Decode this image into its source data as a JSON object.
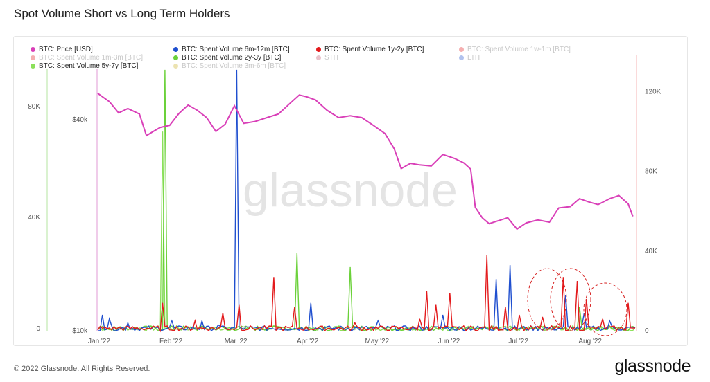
{
  "page": {
    "title": "Spot Volume Short vs Long Term Holders",
    "footer": "© 2022 Glassnode. All Rights Reserved.",
    "brand": "glassnode",
    "watermark": "glassnode"
  },
  "colors": {
    "price": "#d93fb8",
    "v6m12m": "#1f4fcf",
    "v1y2y": "#e31a1c",
    "v2y3y": "#6bd13a",
    "v5y7y": "#8be05a",
    "faded_red": "#f0a0a0",
    "faded_green": "#b5e6a0",
    "faded_gold": "#d6cc7a",
    "faded_rose": "#e8a0b8",
    "faded_blue": "#9ab0e0",
    "annotation": "#d62222"
  },
  "legend": [
    {
      "label": "BTC: Price [USD]",
      "color": "#d93fb8",
      "faded": false
    },
    {
      "label": "BTC: Spent Volume 6m-12m [BTC]",
      "color": "#1f4fcf",
      "faded": false
    },
    {
      "label": "BTC: Spent Volume 1y-2y [BTC]",
      "color": "#e31a1c",
      "faded": false
    },
    {
      "label": "BTC: Spent Volume 1w-1m [BTC]",
      "color": "#e31a1c",
      "faded": true
    },
    {
      "label": "BTC: Spent Volume 1m-3m [BTC]",
      "color": "#e31a1c",
      "faded": true
    },
    {
      "label": "BTC: Spent Volume 2y-3y [BTC]",
      "color": "#6bd13a",
      "faded": false
    },
    {
      "label": "STH",
      "color": "#c0506a",
      "faded": true
    },
    {
      "label": "LTH",
      "color": "#1f4fcf",
      "faded": true
    },
    {
      "label": "BTC: Spent Volume 5y-7y [BTC]",
      "color": "#8be05a",
      "faded": false
    },
    {
      "label": "BTC: Spent Volume 3m-6m [BTC]",
      "color": "#c9b020",
      "faded": true
    }
  ],
  "chart_data": {
    "type": "line",
    "x_labels": [
      "Jan '22",
      "Feb '22",
      "Mar '22",
      "Apr '22",
      "May '22",
      "Jun '22",
      "Jul '22",
      "Aug '22"
    ],
    "axes": {
      "left_outer_ticks": [
        "0",
        "40K",
        "80K"
      ],
      "left_price_ticks": [
        "$10k",
        "$40k"
      ],
      "right_ticks": [
        "0",
        "40K",
        "80K",
        "120K"
      ],
      "price_scale": "log",
      "price_range": [
        10000,
        52000
      ],
      "volume_range": [
        0,
        140000
      ]
    },
    "price": {
      "name": "BTC: Price [USD]",
      "x": [
        "2022-01-01",
        "2022-01-06",
        "2022-01-10",
        "2022-01-14",
        "2022-01-19",
        "2022-01-22",
        "2022-01-25",
        "2022-01-28",
        "2022-02-01",
        "2022-02-05",
        "2022-02-09",
        "2022-02-13",
        "2022-02-17",
        "2022-02-21",
        "2022-02-25",
        "2022-03-01",
        "2022-03-05",
        "2022-03-10",
        "2022-03-15",
        "2022-03-20",
        "2022-03-25",
        "2022-03-29",
        "2022-04-01",
        "2022-04-05",
        "2022-04-10",
        "2022-04-15",
        "2022-04-20",
        "2022-04-25",
        "2022-04-30",
        "2022-05-05",
        "2022-05-09",
        "2022-05-12",
        "2022-05-16",
        "2022-05-20",
        "2022-05-25",
        "2022-05-30",
        "2022-06-04",
        "2022-06-08",
        "2022-06-11",
        "2022-06-13",
        "2022-06-16",
        "2022-06-19",
        "2022-06-22",
        "2022-06-27",
        "2022-07-01",
        "2022-07-05",
        "2022-07-10",
        "2022-07-15",
        "2022-07-19",
        "2022-07-24",
        "2022-07-28",
        "2022-08-01",
        "2022-08-05",
        "2022-08-10",
        "2022-08-14",
        "2022-08-18",
        "2022-08-20"
      ],
      "y": [
        47500,
        45000,
        41800,
        43000,
        41500,
        36000,
        37000,
        38000,
        38500,
        41600,
        44000,
        42500,
        40500,
        37000,
        38800,
        43800,
        39000,
        39500,
        40500,
        41500,
        44500,
        47000,
        46500,
        45500,
        42500,
        40500,
        41000,
        40500,
        38500,
        36500,
        33000,
        29000,
        30000,
        29700,
        29500,
        31800,
        31000,
        30100,
        28900,
        22500,
        21000,
        20200,
        20500,
        21000,
        19500,
        20300,
        20700,
        20400,
        22400,
        22600,
        23800,
        23300,
        22900,
        23800,
        24300,
        23000,
        21200
      ]
    },
    "volume_series": [
      {
        "name": "BTC: Spent Volume 1y-2y [BTC]",
        "color": "#e31a1c",
        "spikes": [
          [
            "2022-01-29",
            14000
          ],
          [
            "2022-02-12",
            5000
          ],
          [
            "2022-02-24",
            9000
          ],
          [
            "2022-03-03",
            13000
          ],
          [
            "2022-03-18",
            27000
          ],
          [
            "2022-03-27",
            12000
          ],
          [
            "2022-04-22",
            4000
          ],
          [
            "2022-05-20",
            6000
          ],
          [
            "2022-05-23",
            20000
          ],
          [
            "2022-05-27",
            13000
          ],
          [
            "2022-06-02",
            19000
          ],
          [
            "2022-06-18",
            38000
          ],
          [
            "2022-06-26",
            12000
          ],
          [
            "2022-07-02",
            8000
          ],
          [
            "2022-07-12",
            7000
          ],
          [
            "2022-07-21",
            27000
          ],
          [
            "2022-07-27",
            25000
          ],
          [
            "2022-07-31",
            16000
          ],
          [
            "2022-08-07",
            6000
          ],
          [
            "2022-08-18",
            14000
          ],
          [
            "2022-08-22",
            4000
          ]
        ]
      },
      {
        "name": "BTC: Spent Volume 6m-12m [BTC]",
        "color": "#1f4fcf",
        "spikes": [
          [
            "2022-01-03",
            8000
          ],
          [
            "2022-01-06",
            6000
          ],
          [
            "2022-01-14",
            4000
          ],
          [
            "2022-02-02",
            5000
          ],
          [
            "2022-02-15",
            5000
          ],
          [
            "2022-02-22",
            3000
          ],
          [
            "2022-03-02",
            131000
          ],
          [
            "2022-04-03",
            14000
          ],
          [
            "2022-05-02",
            5000
          ],
          [
            "2022-05-30",
            8000
          ],
          [
            "2022-06-22",
            26000
          ],
          [
            "2022-06-28",
            33000
          ],
          [
            "2022-07-22",
            18000
          ],
          [
            "2022-07-30",
            9000
          ],
          [
            "2022-08-10",
            5000
          ]
        ]
      },
      {
        "name": "BTC: Spent Volume 2y-3y [BTC]",
        "color": "#6bd13a",
        "spikes": [
          [
            "2022-01-30",
            131000
          ],
          [
            "2022-03-28",
            39000
          ],
          [
            "2022-04-20",
            32000
          ],
          [
            "2022-07-28",
            12000
          ]
        ]
      },
      {
        "name": "BTC: Spent Volume 5y-7y [BTC]",
        "color": "#8be05a",
        "spikes": [
          [
            "2022-01-29",
            100000
          ]
        ]
      }
    ]
  }
}
